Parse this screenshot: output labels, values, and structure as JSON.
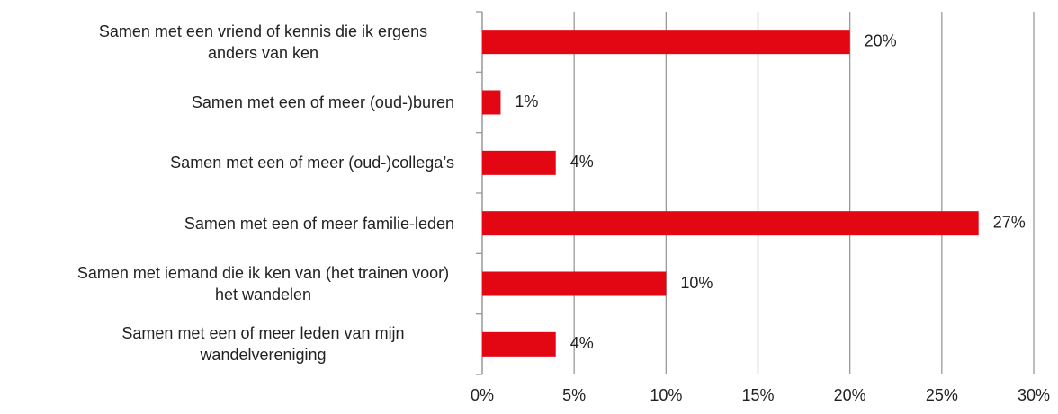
{
  "chart_data": {
    "type": "bar",
    "orientation": "horizontal",
    "categories": [
      "Samen met een vriend of kennis die ik ergens anders van ken",
      "Samen met een of meer (oud-)buren",
      "Samen met een of meer (oud-)collega’s",
      "Samen met een of meer familie-leden",
      "Samen met iemand die ik ken van (het trainen voor) het wandelen",
      "Samen met een of meer leden van mijn wandelvereniging"
    ],
    "values": [
      20,
      1,
      4,
      27,
      10,
      4
    ],
    "value_labels": [
      "20%",
      "1%",
      "4%",
      "27%",
      "10%",
      "4%"
    ],
    "color": "#e30613",
    "xlim": [
      0,
      30
    ],
    "xticks": [
      {
        "value": 0,
        "label": "0%"
      },
      {
        "value": 5,
        "label": "5%"
      },
      {
        "value": 10,
        "label": "10%"
      },
      {
        "value": 15,
        "label": "15%"
      },
      {
        "value": 20,
        "label": "20%"
      },
      {
        "value": 25,
        "label": "25%"
      },
      {
        "value": 30,
        "label": "30%"
      }
    ],
    "grid": true
  }
}
